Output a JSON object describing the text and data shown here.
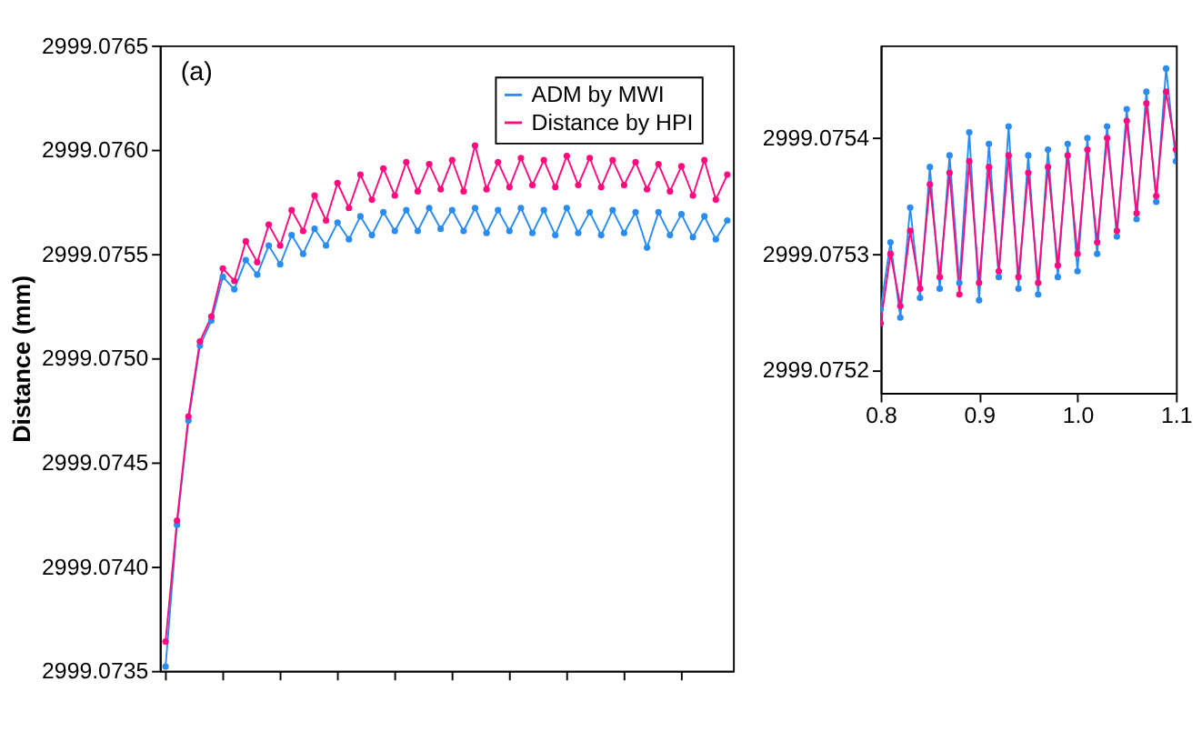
{
  "chart_data": [
    {
      "type": "line",
      "ylabel": "Distance (mm)",
      "annotations": [
        "(a)"
      ],
      "legend": "top right",
      "marker": "circle",
      "line_style": "solid",
      "grid": false,
      "tick_labels": "y",
      "categories": [
        null,
        null,
        null,
        null,
        null,
        null,
        null,
        null,
        null,
        null,
        null,
        null,
        null,
        null,
        null,
        null,
        null,
        null,
        null,
        null,
        null,
        null,
        null,
        null,
        null,
        null,
        null,
        null,
        null,
        null,
        null,
        null,
        null,
        null,
        null,
        null,
        null,
        null,
        null,
        null,
        null,
        null,
        null,
        null,
        null,
        null,
        null,
        null,
        null,
        null
      ],
      "ylim": [
        2999.0735,
        2999.0765
      ],
      "yticks": [
        2999.0735,
        {
          "value": 2999.074,
          "label": "2999.0740"
        },
        2999.0745,
        {
          "value": 2999.075,
          "label": "2999.0750"
        },
        2999.0755,
        {
          "value": 2999.076,
          "label": "2999.0760"
        },
        2999.0765
      ],
      "series": [
        {
          "name": "ADM by MWI",
          "color": "#2a8cf0",
          "values": [
            2999.07352,
            2999.0742,
            2999.0747,
            2999.07506,
            2999.07518,
            2999.07539,
            2999.07533,
            2999.07547,
            2999.0754,
            2999.07554,
            2999.07545,
            2999.07559,
            2999.0755,
            2999.07562,
            2999.07554,
            2999.07565,
            2999.07557,
            2999.07568,
            2999.07559,
            2999.0757,
            2999.07561,
            2999.07571,
            2999.07561,
            2999.07572,
            2999.07562,
            2999.07571,
            2999.07561,
            2999.07572,
            2999.0756,
            2999.07571,
            2999.07561,
            2999.07572,
            2999.0756,
            2999.07571,
            2999.07559,
            2999.07572,
            2999.0756,
            2999.0757,
            2999.07559,
            2999.07571,
            2999.0756,
            2999.0757,
            2999.07553,
            2999.0757,
            2999.07559,
            2999.07569,
            2999.07558,
            2999.07568,
            2999.07557,
            2999.07566
          ]
        },
        {
          "name": "Distance by HPI",
          "color": "#ff0a7f",
          "values": [
            2999.07364,
            2999.07422,
            2999.07472,
            2999.07508,
            2999.0752,
            2999.07543,
            2999.07537,
            2999.07556,
            2999.07546,
            2999.07564,
            2999.07554,
            2999.07571,
            2999.07561,
            2999.07578,
            2999.07566,
            2999.07584,
            2999.07572,
            2999.07588,
            2999.07576,
            2999.07591,
            2999.07578,
            2999.07594,
            2999.0758,
            2999.07593,
            2999.07581,
            2999.07595,
            2999.0758,
            2999.07602,
            2999.07581,
            2999.07594,
            2999.07582,
            2999.07596,
            2999.07583,
            2999.07595,
            2999.07582,
            2999.07597,
            2999.07583,
            2999.07596,
            2999.07582,
            2999.07595,
            2999.07583,
            2999.07594,
            2999.07581,
            2999.07593,
            2999.0758,
            2999.07592,
            2999.07578,
            2999.07595,
            2999.07576,
            2999.07588
          ]
        }
      ]
    },
    {
      "type": "line",
      "marker": "circle",
      "line_style": "solid",
      "grid": false,
      "legend": false,
      "x": [
        0.8,
        0.81,
        0.82,
        0.83,
        0.84,
        0.85,
        0.86,
        0.87,
        0.88,
        0.89,
        0.9,
        0.91,
        0.92,
        0.93,
        0.94,
        0.95,
        0.96,
        0.97,
        0.98,
        0.99,
        1.0,
        1.01,
        1.02,
        1.03,
        1.04,
        1.05,
        1.06,
        1.07,
        1.08,
        1.09,
        1.1
      ],
      "xlim": [
        0.8,
        1.1
      ],
      "xticks": [
        {
          "value": 0.8,
          "label": "0.8"
        },
        {
          "value": 0.9,
          "label": "0.9"
        },
        {
          "value": 1.0,
          "label": "1.0"
        },
        {
          "value": 1.1,
          "label": "1.1"
        }
      ],
      "ylim": [
        2999.07518,
        2999.07548
      ],
      "yticks": [
        2999.0752,
        2999.0753,
        2999.0754
      ],
      "series": [
        {
          "color": "#2a8cf0",
          "values": [
            2999.075252,
            2999.07531,
            2999.075245,
            2999.07534,
            2999.075262,
            2999.075375,
            2999.07527,
            2999.075385,
            2999.075275,
            2999.075405,
            2999.07526,
            2999.075395,
            2999.07528,
            2999.07541,
            2999.07527,
            2999.075385,
            2999.075265,
            2999.07539,
            2999.07528,
            2999.075395,
            2999.075285,
            2999.0754,
            2999.0753,
            2999.07541,
            2999.075315,
            2999.075425,
            2999.07533,
            2999.07544,
            2999.075345,
            2999.07546,
            2999.07538
          ]
        },
        {
          "color": "#ff0a7f",
          "values": [
            2999.07524,
            2999.0753,
            2999.075255,
            2999.07532,
            2999.07527,
            2999.07536,
            2999.07528,
            2999.07537,
            2999.075265,
            2999.07538,
            2999.075275,
            2999.075375,
            2999.075285,
            2999.075385,
            2999.07528,
            2999.07537,
            2999.075275,
            2999.075375,
            2999.07529,
            2999.075385,
            2999.0753,
            2999.07539,
            2999.07531,
            2999.0754,
            2999.07532,
            2999.075415,
            2999.075335,
            2999.07543,
            2999.07535,
            2999.07544,
            2999.07539
          ]
        }
      ]
    }
  ]
}
